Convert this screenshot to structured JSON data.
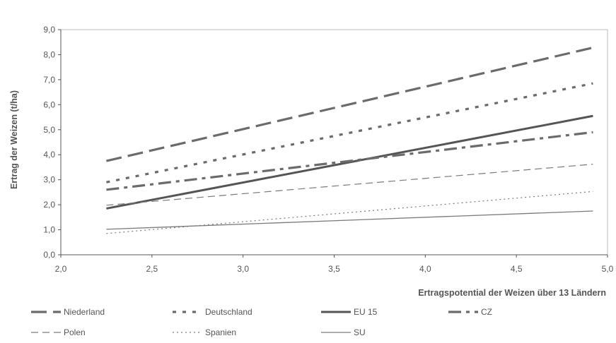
{
  "chart_data": {
    "type": "line",
    "xlabel": "Ertragspotential der Weizen über 13 Ländern",
    "ylabel": "Ertrag der Weizen (t/ha)",
    "xlim": [
      2.0,
      5.0
    ],
    "ylim": [
      0.0,
      9.0
    ],
    "xticks": [
      "2,0",
      "2,5",
      "3,0",
      "3,5",
      "4,0",
      "4,5",
      "5,0"
    ],
    "yticks": [
      "0,0",
      "1,0",
      "2,0",
      "3,0",
      "4,0",
      "5,0",
      "6,0",
      "7,0",
      "8,0",
      "9,0"
    ],
    "grid": false,
    "legend_position": "bottom",
    "series": [
      {
        "name": "Niederland",
        "x": [
          2.25,
          4.92
        ],
        "y": [
          3.75,
          8.28
        ],
        "style": "long-dash-thick",
        "color": "#6b6b6b"
      },
      {
        "name": "Deutschland",
        "x": [
          2.25,
          4.92
        ],
        "y": [
          2.9,
          6.85
        ],
        "style": "dotted-thick",
        "color": "#6b6b6b"
      },
      {
        "name": "EU 15",
        "x": [
          2.25,
          4.92
        ],
        "y": [
          1.85,
          5.55
        ],
        "style": "solid-thick",
        "color": "#555555"
      },
      {
        "name": "CZ",
        "x": [
          2.25,
          4.92
        ],
        "y": [
          2.6,
          4.9
        ],
        "style": "dash-dot-thick",
        "color": "#6b6b6b"
      },
      {
        "name": "Polen",
        "x": [
          2.25,
          4.92
        ],
        "y": [
          1.98,
          3.62
        ],
        "style": "dashed-thin",
        "color": "#7a7a7a"
      },
      {
        "name": "Spanien",
        "x": [
          2.25,
          4.92
        ],
        "y": [
          0.85,
          2.53
        ],
        "style": "dotted-thin",
        "color": "#7a7a7a"
      },
      {
        "name": "SU",
        "x": [
          2.25,
          4.92
        ],
        "y": [
          1.02,
          1.75
        ],
        "style": "solid-thin",
        "color": "#7a7a7a"
      }
    ]
  }
}
